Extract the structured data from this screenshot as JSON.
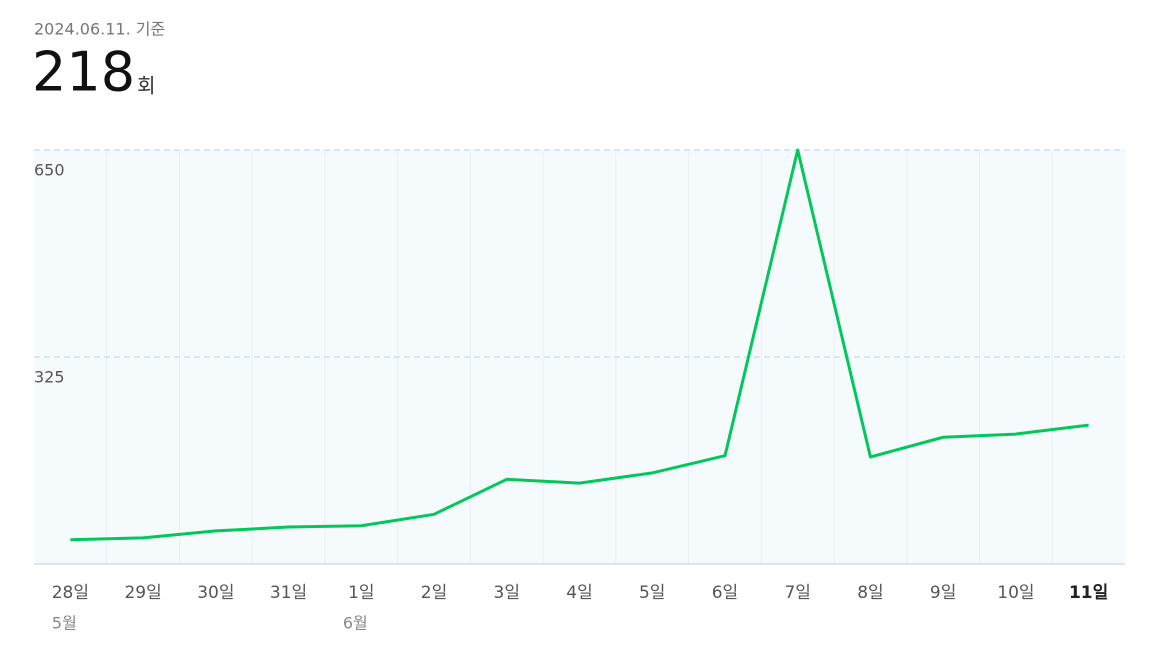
{
  "chart_data": {
    "type": "line",
    "subtitle": "2024.06.11. 기준",
    "headline_value": 218,
    "headline_unit": "회",
    "categories": [
      "28일",
      "29일",
      "30일",
      "31일",
      "1일",
      "2일",
      "3일",
      "4일",
      "5일",
      "6일",
      "7일",
      "8일",
      "9일",
      "10일",
      "11일"
    ],
    "month_labels": [
      "5월",
      null,
      null,
      null,
      "6월",
      null,
      null,
      null,
      null,
      null,
      null,
      null,
      null,
      null,
      null
    ],
    "values": [
      38,
      41,
      52,
      58,
      60,
      78,
      133,
      127,
      143,
      170,
      650,
      168,
      199,
      204,
      218
    ],
    "color": "#03c75a",
    "ylim": [
      0,
      650
    ],
    "yticks": [
      325,
      650
    ],
    "grid": true
  }
}
